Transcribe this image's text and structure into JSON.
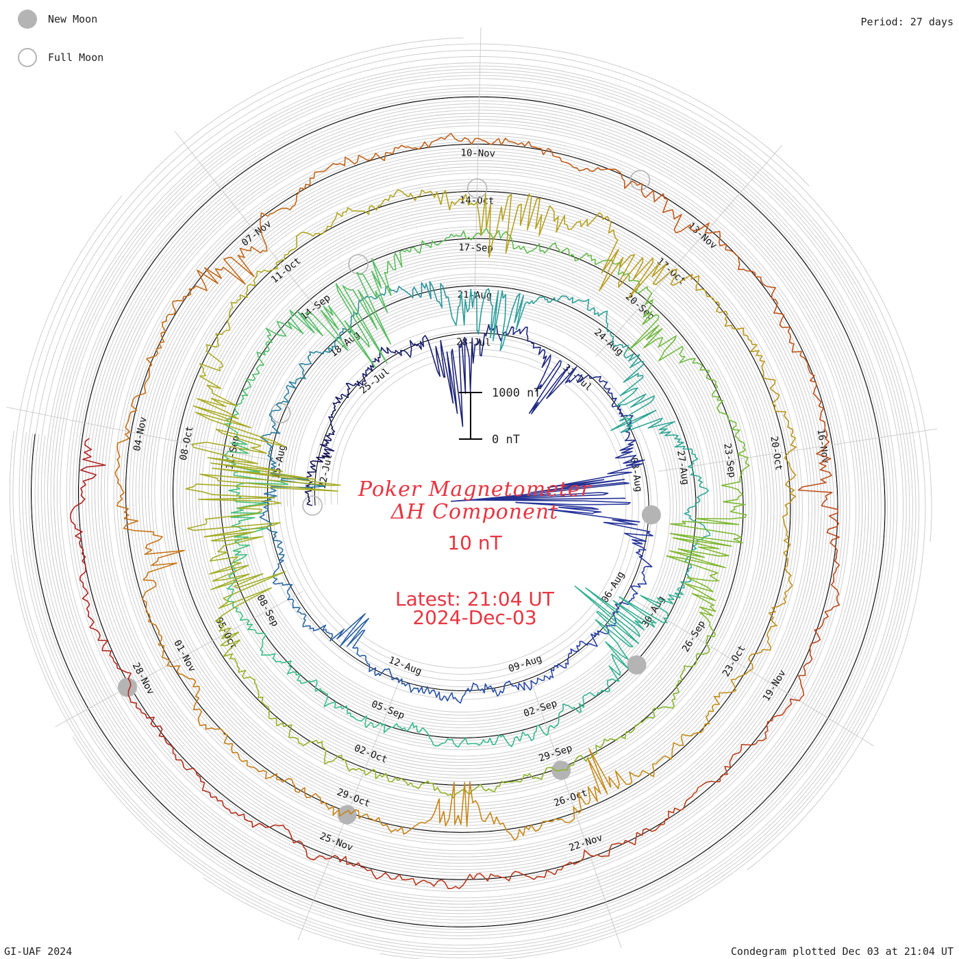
{
  "legend": {
    "new_moon": "New Moon",
    "full_moon": "Full Moon"
  },
  "period": "Period: 27 days",
  "footer": {
    "left": "GI-UAF 2024",
    "right": "Condegram plotted Dec 03 at 21:04 UT"
  },
  "title": {
    "line1": "Poker Magnetometer",
    "line2": "ΔH Component",
    "baseline": "10 nT",
    "latest": "Latest: 21:04 UT",
    "date": "2024-Dec-03"
  },
  "scale_bar": {
    "top": "1000 nT",
    "bottom": "0 nT"
  },
  "chart_data": {
    "type": "line",
    "subtype": "condegram (spiral)",
    "period_days": 27,
    "direction": "clockwise",
    "units": "nT",
    "scale_bar_nT": 1000,
    "start_date": "2024-07-21",
    "end_time": "2024-12-03 21:04 UT",
    "grid": true,
    "legend_position": "top-left",
    "rotations": [
      {
        "start": "2024-07-21",
        "color": "#121050",
        "date_labels": [
          "22-Jul",
          "25-Jul",
          "28-Jul",
          "31-Jul",
          "03-Aug",
          "06-Aug",
          "09-Aug",
          "12-Aug"
        ]
      },
      {
        "start": "2024-08-17",
        "color": "#2a3ca8",
        "date_labels": [
          "15-Aug",
          "18-Aug",
          "21-Aug",
          "24-Aug",
          "27-Aug",
          "30-Aug",
          "02-Sep",
          "05-Sep",
          "08-Sep"
        ]
      },
      {
        "start": "2024-09-13",
        "color": "#2a9a9a",
        "date_labels": [
          "11-Sep",
          "14-Sep",
          "17-Sep",
          "20-Sep",
          "23-Sep",
          "26-Sep",
          "29-Sep",
          "02-Oct",
          "05-Oct"
        ]
      },
      {
        "start": "2024-10-10",
        "color": "#7cb82e",
        "date_labels": [
          "08-Oct",
          "11-Oct",
          "14-Oct",
          "17-Oct",
          "20-Oct",
          "23-Oct",
          "26-Oct",
          "29-Oct",
          "01-Nov"
        ]
      },
      {
        "start": "2024-11-06",
        "color": "#c88416",
        "date_labels": [
          "04-Nov",
          "07-Nov",
          "10-Nov",
          "13-Nov",
          "16-Nov",
          "19-Nov",
          "22-Nov",
          "25-Nov",
          "28-Nov"
        ]
      }
    ],
    "series": [
      {
        "name": "ΔH",
        "color_gradient": [
          "#121050",
          "#2a3ca8",
          "#2a9a9a",
          "#38c08a",
          "#7cb82e",
          "#b0a820",
          "#c88416",
          "#c05418",
          "#b01e1e"
        ]
      }
    ],
    "new_moons": [
      "2024-08-04",
      "2024-09-03",
      "2024-10-02",
      "2024-11-01",
      "2024-12-01"
    ],
    "full_moons": [
      "2024-07-21",
      "2024-08-19",
      "2024-09-18",
      "2024-10-17",
      "2024-11-15"
    ],
    "disturbances": [
      {
        "date": "2024-07-22",
        "amplitude": 60,
        "spread": 0.3
      },
      {
        "date": "2024-07-27",
        "amplitude": 230,
        "spread": 0.7
      },
      {
        "date": "2024-07-30",
        "amplitude": 180,
        "spread": 0.4
      },
      {
        "date": "2024-08-03",
        "amplitude": 520,
        "spread": 0.8
      },
      {
        "date": "2024-08-13",
        "amplitude": 110,
        "spread": 0.4
      },
      {
        "date": "2024-08-17",
        "amplitude": 170,
        "spread": 0.25
      },
      {
        "date": "2024-08-23",
        "amplitude": 120,
        "spread": 0.5
      },
      {
        "date": "2024-08-24",
        "amplitude": 200,
        "spread": 0.6
      },
      {
        "date": "2024-08-28",
        "amplitude": 180,
        "spread": 0.7
      },
      {
        "date": "2024-09-02",
        "amplitude": 240,
        "spread": 0.7
      },
      {
        "date": "2024-09-12",
        "amplitude": 110,
        "spread": 0.5
      },
      {
        "date": "2024-09-13",
        "amplitude": 170,
        "spread": 0.6
      },
      {
        "date": "2024-09-17",
        "amplitude": 260,
        "spread": 0.9
      },
      {
        "date": "2024-09-23",
        "amplitude": 120,
        "spread": 0.5
      },
      {
        "date": "2024-09-27",
        "amplitude": 210,
        "spread": 0.9
      },
      {
        "date": "2024-10-08",
        "amplitude": 200,
        "spread": 0.6
      },
      {
        "date": "2024-10-10",
        "amplitude": 420,
        "spread": 1.2
      },
      {
        "date": "2024-10-17",
        "amplitude": 180,
        "spread": 0.8
      },
      {
        "date": "2024-10-19",
        "amplitude": 170,
        "spread": 0.6
      },
      {
        "date": "2024-10-28",
        "amplitude": 130,
        "spread": 0.4
      },
      {
        "date": "2024-10-30",
        "amplitude": 160,
        "spread": 0.4
      },
      {
        "date": "2024-11-05",
        "amplitude": 140,
        "spread": 0.4
      },
      {
        "date": "2024-11-09",
        "amplitude": 120,
        "spread": 0.5
      },
      {
        "date": "2024-11-15",
        "amplitude": 80,
        "spread": 0.4
      },
      {
        "date": "2024-11-19",
        "amplitude": 110,
        "spread": 0.4
      },
      {
        "date": "2024-12-03",
        "amplitude": 60,
        "spread": 0.3
      }
    ]
  }
}
